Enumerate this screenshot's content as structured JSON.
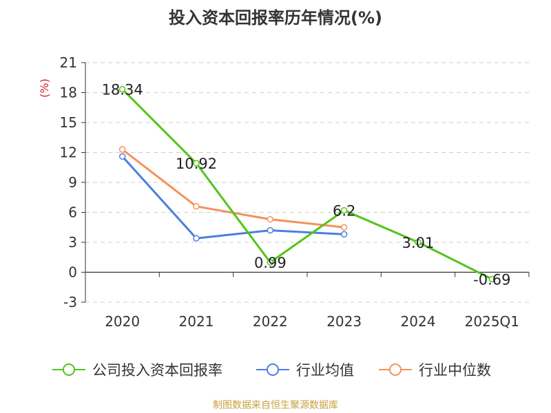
{
  "title": "投入资本回报率历年情况(%)",
  "source": "制图数据来自恒生聚源数据库",
  "chart_data": {
    "type": "line",
    "title": "投入资本回报率历年情况(%)",
    "ylabel": "(%)",
    "categories": [
      "2020",
      "2021",
      "2022",
      "2023",
      "2024",
      "2025Q1"
    ],
    "ylim": [
      -3,
      21
    ],
    "yticks": [
      -3,
      0,
      3,
      6,
      9,
      12,
      15,
      18,
      21
    ],
    "grid": true,
    "legend_position": "bottom",
    "series": [
      {
        "name": "公司投入资本回报率",
        "color": "#52c41a",
        "values": [
          18.34,
          10.92,
          0.99,
          6.2,
          3.01,
          -0.69
        ],
        "labels": [
          "18.34",
          "10.92",
          "0.99",
          "6.2",
          "3.01",
          "-0.69"
        ]
      },
      {
        "name": "行业均值",
        "color": "#4a7fdc",
        "values": [
          11.6,
          3.4,
          4.2,
          3.8,
          null,
          null
        ]
      },
      {
        "name": "行业中位数",
        "color": "#f5915a",
        "values": [
          12.3,
          6.6,
          5.3,
          4.5,
          null,
          null
        ]
      }
    ]
  }
}
